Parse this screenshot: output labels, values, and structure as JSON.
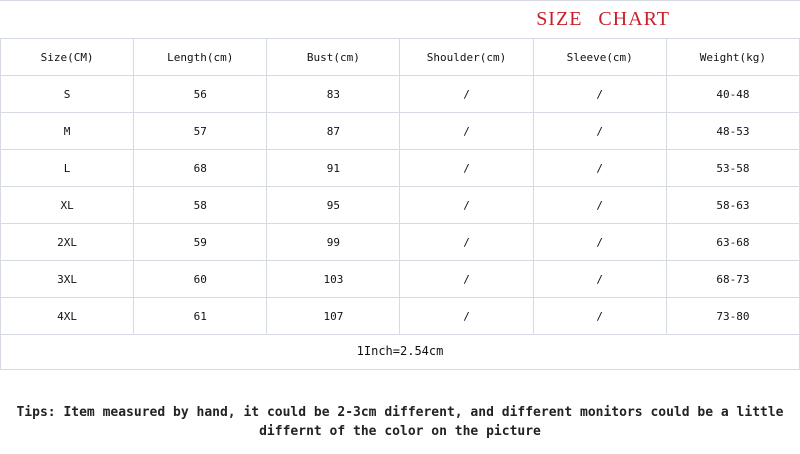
{
  "title": "SIZE CHART",
  "table": {
    "headers": [
      "Size(CM)",
      "Length(cm)",
      "Bust(cm)",
      "Shoulder(cm)",
      "Sleeve(cm)",
      "Weight(kg)"
    ],
    "rows": [
      [
        "S",
        "56",
        "83",
        "/",
        "/",
        "40-48"
      ],
      [
        "M",
        "57",
        "87",
        "/",
        "/",
        "48-53"
      ],
      [
        "L",
        "68",
        "91",
        "/",
        "/",
        "53-58"
      ],
      [
        "XL",
        "58",
        "95",
        "/",
        "/",
        "58-63"
      ],
      [
        "2XL",
        "59",
        "99",
        "/",
        "/",
        "63-68"
      ],
      [
        "3XL",
        "60",
        "103",
        "/",
        "/",
        "68-73"
      ],
      [
        "4XL",
        "61",
        "107",
        "/",
        "/",
        "73-80"
      ]
    ]
  },
  "conversion": "1Inch=2.54cm",
  "tips": "Tips: Item measured by hand, it could be 2-3cm different,  and different monitors could be a little differnt of the color on the picture",
  "colors": {
    "title": "#c8202a",
    "border": "#d6dae2"
  }
}
